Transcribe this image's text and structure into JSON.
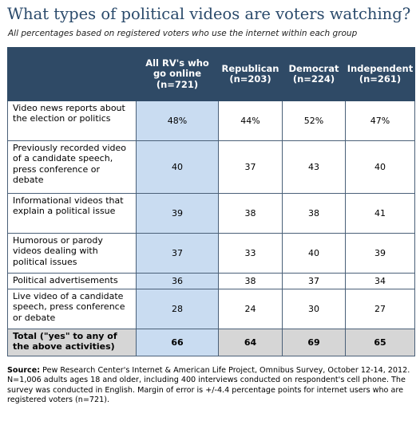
{
  "title": "What types of political videos are voters watching?",
  "subtitle": "All percentages based on registered voters who use the internet within each group",
  "colors": {
    "header_bg": "#2f4a66",
    "highlight_column": "#c9dcf1",
    "total_row": "#d6d6d6",
    "title": "#2a4a6b"
  },
  "chart_data": {
    "type": "table",
    "columns": [
      "",
      "All RV's who go online (n=721)",
      "Republican (n=203)",
      "Democrat (n=224)",
      "Independent (n=261)"
    ],
    "rows": [
      {
        "label": "Video news reports about the election or politics",
        "values": [
          "48%",
          "44%",
          "52%",
          "47%"
        ]
      },
      {
        "label": "Previously recorded video of a candidate speech, press conference or debate",
        "values": [
          "40",
          "37",
          "43",
          "40"
        ]
      },
      {
        "label": "Informational videos that explain a political issue",
        "values": [
          "39",
          "38",
          "38",
          "41"
        ]
      },
      {
        "label": "Humorous or parody videos dealing with political issues",
        "values": [
          "37",
          "33",
          "40",
          "39"
        ]
      },
      {
        "label": "Political advertisements",
        "values": [
          "36",
          "38",
          "37",
          "34"
        ]
      },
      {
        "label": "Live video of a candidate speech, press conference or debate",
        "values": [
          "28",
          "24",
          "30",
          "27"
        ]
      },
      {
        "label": "Total (\"yes\" to any of the above activities)",
        "values": [
          "66",
          "64",
          "69",
          "65"
        ]
      }
    ]
  },
  "header": {
    "all_rv_line1": "All RV's who",
    "all_rv_line2": "go online",
    "all_rv_line3": "(n=721)",
    "rep_line1": "Republican",
    "rep_line2": "(n=203)",
    "dem_line1": "Democrat",
    "dem_line2": "(n=224)",
    "ind_line1": "Independent",
    "ind_line2": "(n=261)"
  },
  "source": {
    "label": "Source:",
    "text": " Pew Research Center's Internet & American Life Project, Omnibus Survey, October 12-14, 2012. N=1,006 adults ages 18 and older, including 400 interviews conducted on respondent's cell phone. The survey was conducted in English. Margin of error is +/-4.4 percentage points for internet users who are registered voters (n=721)."
  }
}
